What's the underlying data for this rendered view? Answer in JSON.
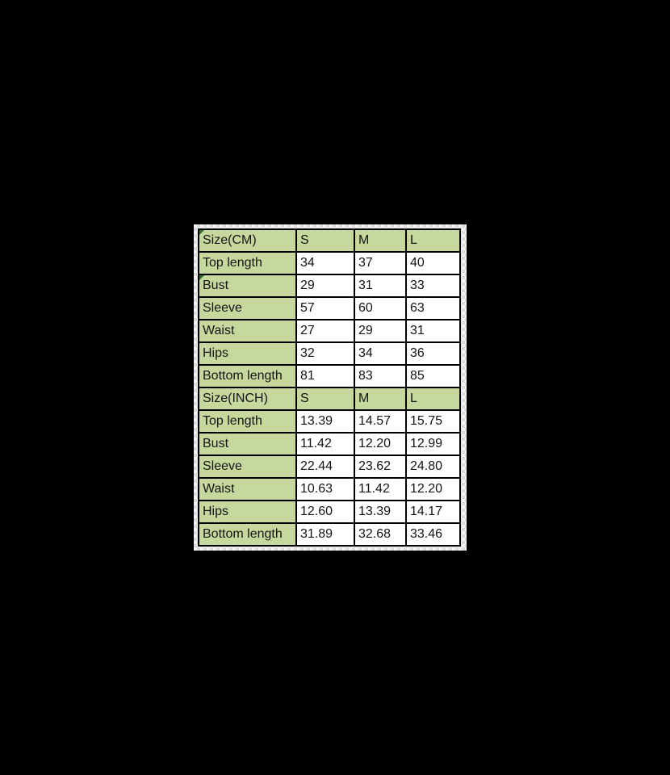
{
  "colors": {
    "canvas_background": "#000000",
    "header_and_label_fill": "#c6d89e",
    "data_cell_fill": "#ffffff",
    "grid_border": "#000000",
    "text": "#141414",
    "corner_indicator": "#2f7031",
    "frame_gray": "#ededed"
  },
  "table": {
    "sections": [
      {
        "header": {
          "label": "Size(CM)",
          "cols": [
            "S",
            "M",
            "L"
          ],
          "indicator": true
        },
        "rows": [
          {
            "label": "Top length",
            "values": [
              "34",
              "37",
              "40"
            ],
            "indicator": false
          },
          {
            "label": "Bust",
            "values": [
              "29",
              "31",
              "33"
            ],
            "indicator": true
          },
          {
            "label": "Sleeve",
            "values": [
              "57",
              "60",
              "63"
            ],
            "indicator": false
          },
          {
            "label": "Waist",
            "values": [
              "27",
              "29",
              "31"
            ],
            "indicator": false
          },
          {
            "label": "Hips",
            "values": [
              "32",
              "34",
              "36"
            ],
            "indicator": false
          },
          {
            "label": "Bottom length",
            "values": [
              "81",
              "83",
              "85"
            ],
            "indicator": false
          }
        ]
      },
      {
        "header": {
          "label": "Size(INCH)",
          "cols": [
            "S",
            "M",
            "L"
          ],
          "indicator": false
        },
        "rows": [
          {
            "label": "Top length",
            "values": [
              "13.39",
              "14.57",
              "15.75"
            ],
            "indicator": false
          },
          {
            "label": "Bust",
            "values": [
              "11.42",
              "12.20",
              "12.99"
            ],
            "indicator": false
          },
          {
            "label": "Sleeve",
            "values": [
              "22.44",
              "23.62",
              "24.80"
            ],
            "indicator": false
          },
          {
            "label": "Waist",
            "values": [
              "10.63",
              "11.42",
              "12.20"
            ],
            "indicator": false
          },
          {
            "label": "Hips",
            "values": [
              "12.60",
              "13.39",
              "14.17"
            ],
            "indicator": false
          },
          {
            "label": "Bottom length",
            "values": [
              "31.89",
              "32.68",
              "33.46"
            ],
            "indicator": false
          }
        ]
      }
    ]
  }
}
